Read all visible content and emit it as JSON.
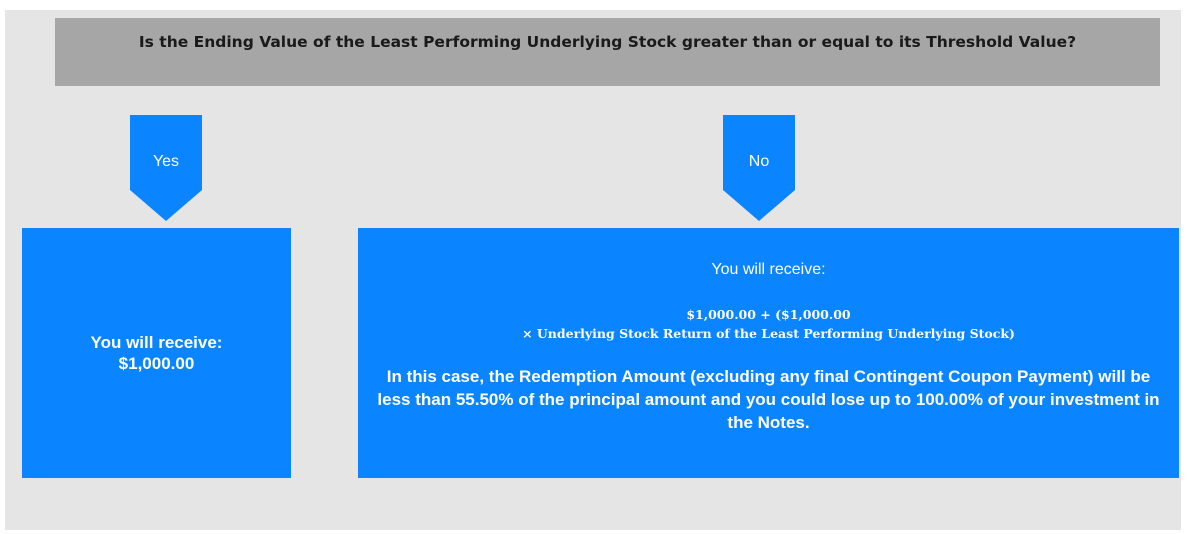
{
  "question": "Is the Ending Value of the Least Performing Underlying Stock greater than or equal to its Threshold Value?",
  "yes": {
    "label": "Yes",
    "outcome": [
      "You will receive:",
      "$1,000.00"
    ]
  },
  "no": {
    "label": "No",
    "intro": "You will receive:",
    "formula": [
      "$1,000.00 + ($1,000.00",
      "× Underlying Stock Return of the Least Performing Underlying Stock)"
    ],
    "note": "In this case, the Redemption Amount (excluding any final Contingent Coupon Payment) will be less than 55.50% of the principal amount and you could lose up to 100.00% of your investment in the Notes."
  }
}
